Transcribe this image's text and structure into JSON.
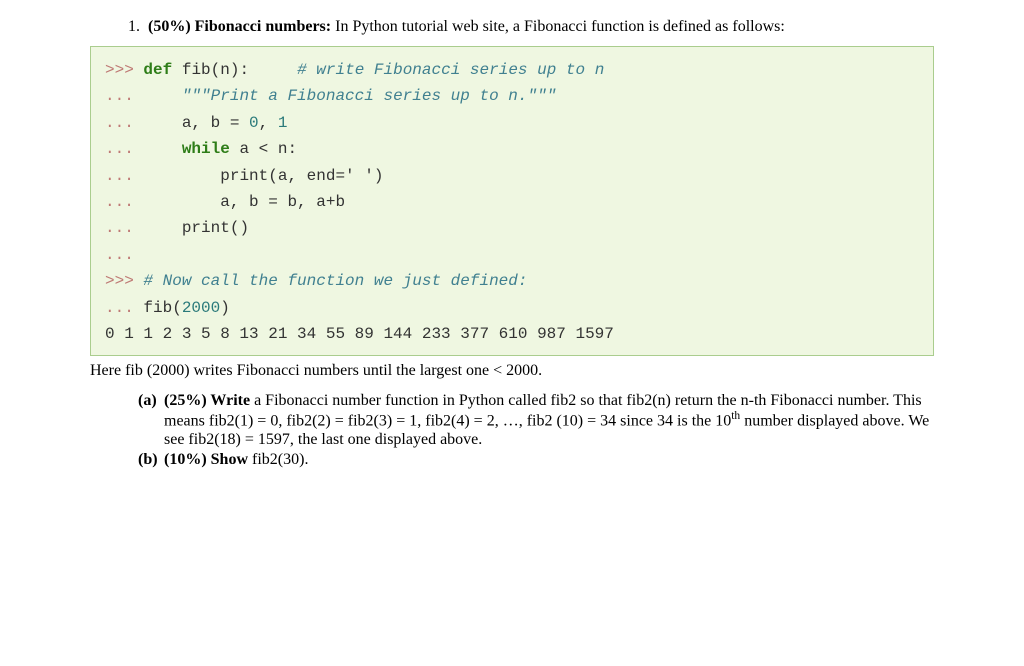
{
  "document": {
    "background_color": "#ffffff",
    "text_color": "#000000",
    "body_font_family": "Times New Roman",
    "body_font_size_pt": 12,
    "code_font_family": "Courier New",
    "code_font_size_pt": 12
  },
  "question": {
    "number": "1.",
    "percent_label": "(50%)",
    "title": "Fibonacci numbers:",
    "intro_rest": " In Python tutorial web site, a Fibonacci function is defined as follows:"
  },
  "codebox": {
    "background_color": "#eff7e1",
    "border_color": "#aacd8e",
    "prompt_color": "#bf7a75",
    "keyword_color": "#2e7d18",
    "comment_color": "#408090",
    "number_color": "#2a7a7a",
    "text_color": "#333333",
    "prompt_primary": ">>>",
    "prompt_cont": "...",
    "tokens": {
      "kw_def": "def",
      "fn_name": "fib",
      "paren_n": "(n):",
      "comment_line1": "# write Fibonacci series up to n",
      "docstring": "\"\"\"Print a Fibonacci series up to n.\"\"\"",
      "assign1_left": "a, b = ",
      "zero": "0",
      "comma_sp": ", ",
      "one": "1",
      "kw_while": "while",
      "while_rest": " a < n:",
      "print_a": "print(a, end=' ')",
      "swap": "a, b = b, a+b",
      "print_empty": "print()",
      "comment_call": "# Now call the function we just defined:",
      "call_fib_pre": "fib(",
      "call_fib_arg": "2000",
      "call_fib_post": ")",
      "output": "0 1 1 2 3 5 8 13 21 34 55 89 144 233 377 610 987 1597"
    }
  },
  "after_code": {
    "text": "Here fib (2000) writes Fibonacci numbers until the largest one < 2000."
  },
  "subparts": {
    "a": {
      "label": "(a)",
      "percent": "(25%)",
      "lead_bold": "Write",
      "rest": " a Fibonacci number function in Python called fib2 so that fib2(n) return the n-th Fibonacci number. This means fib2(1) = 0, fib2(2) = fib2(3) = 1, fib2(4) = 2, …, fib2 (10) = 34 since 34 is the 10",
      "sup": "th",
      "rest2": " number displayed above. We see fib2(18) = 1597, the last one displayed above."
    },
    "b": {
      "label": "(b)",
      "percent": "(10%)",
      "lead_bold": "Show",
      "rest": " fib2(30)."
    }
  }
}
